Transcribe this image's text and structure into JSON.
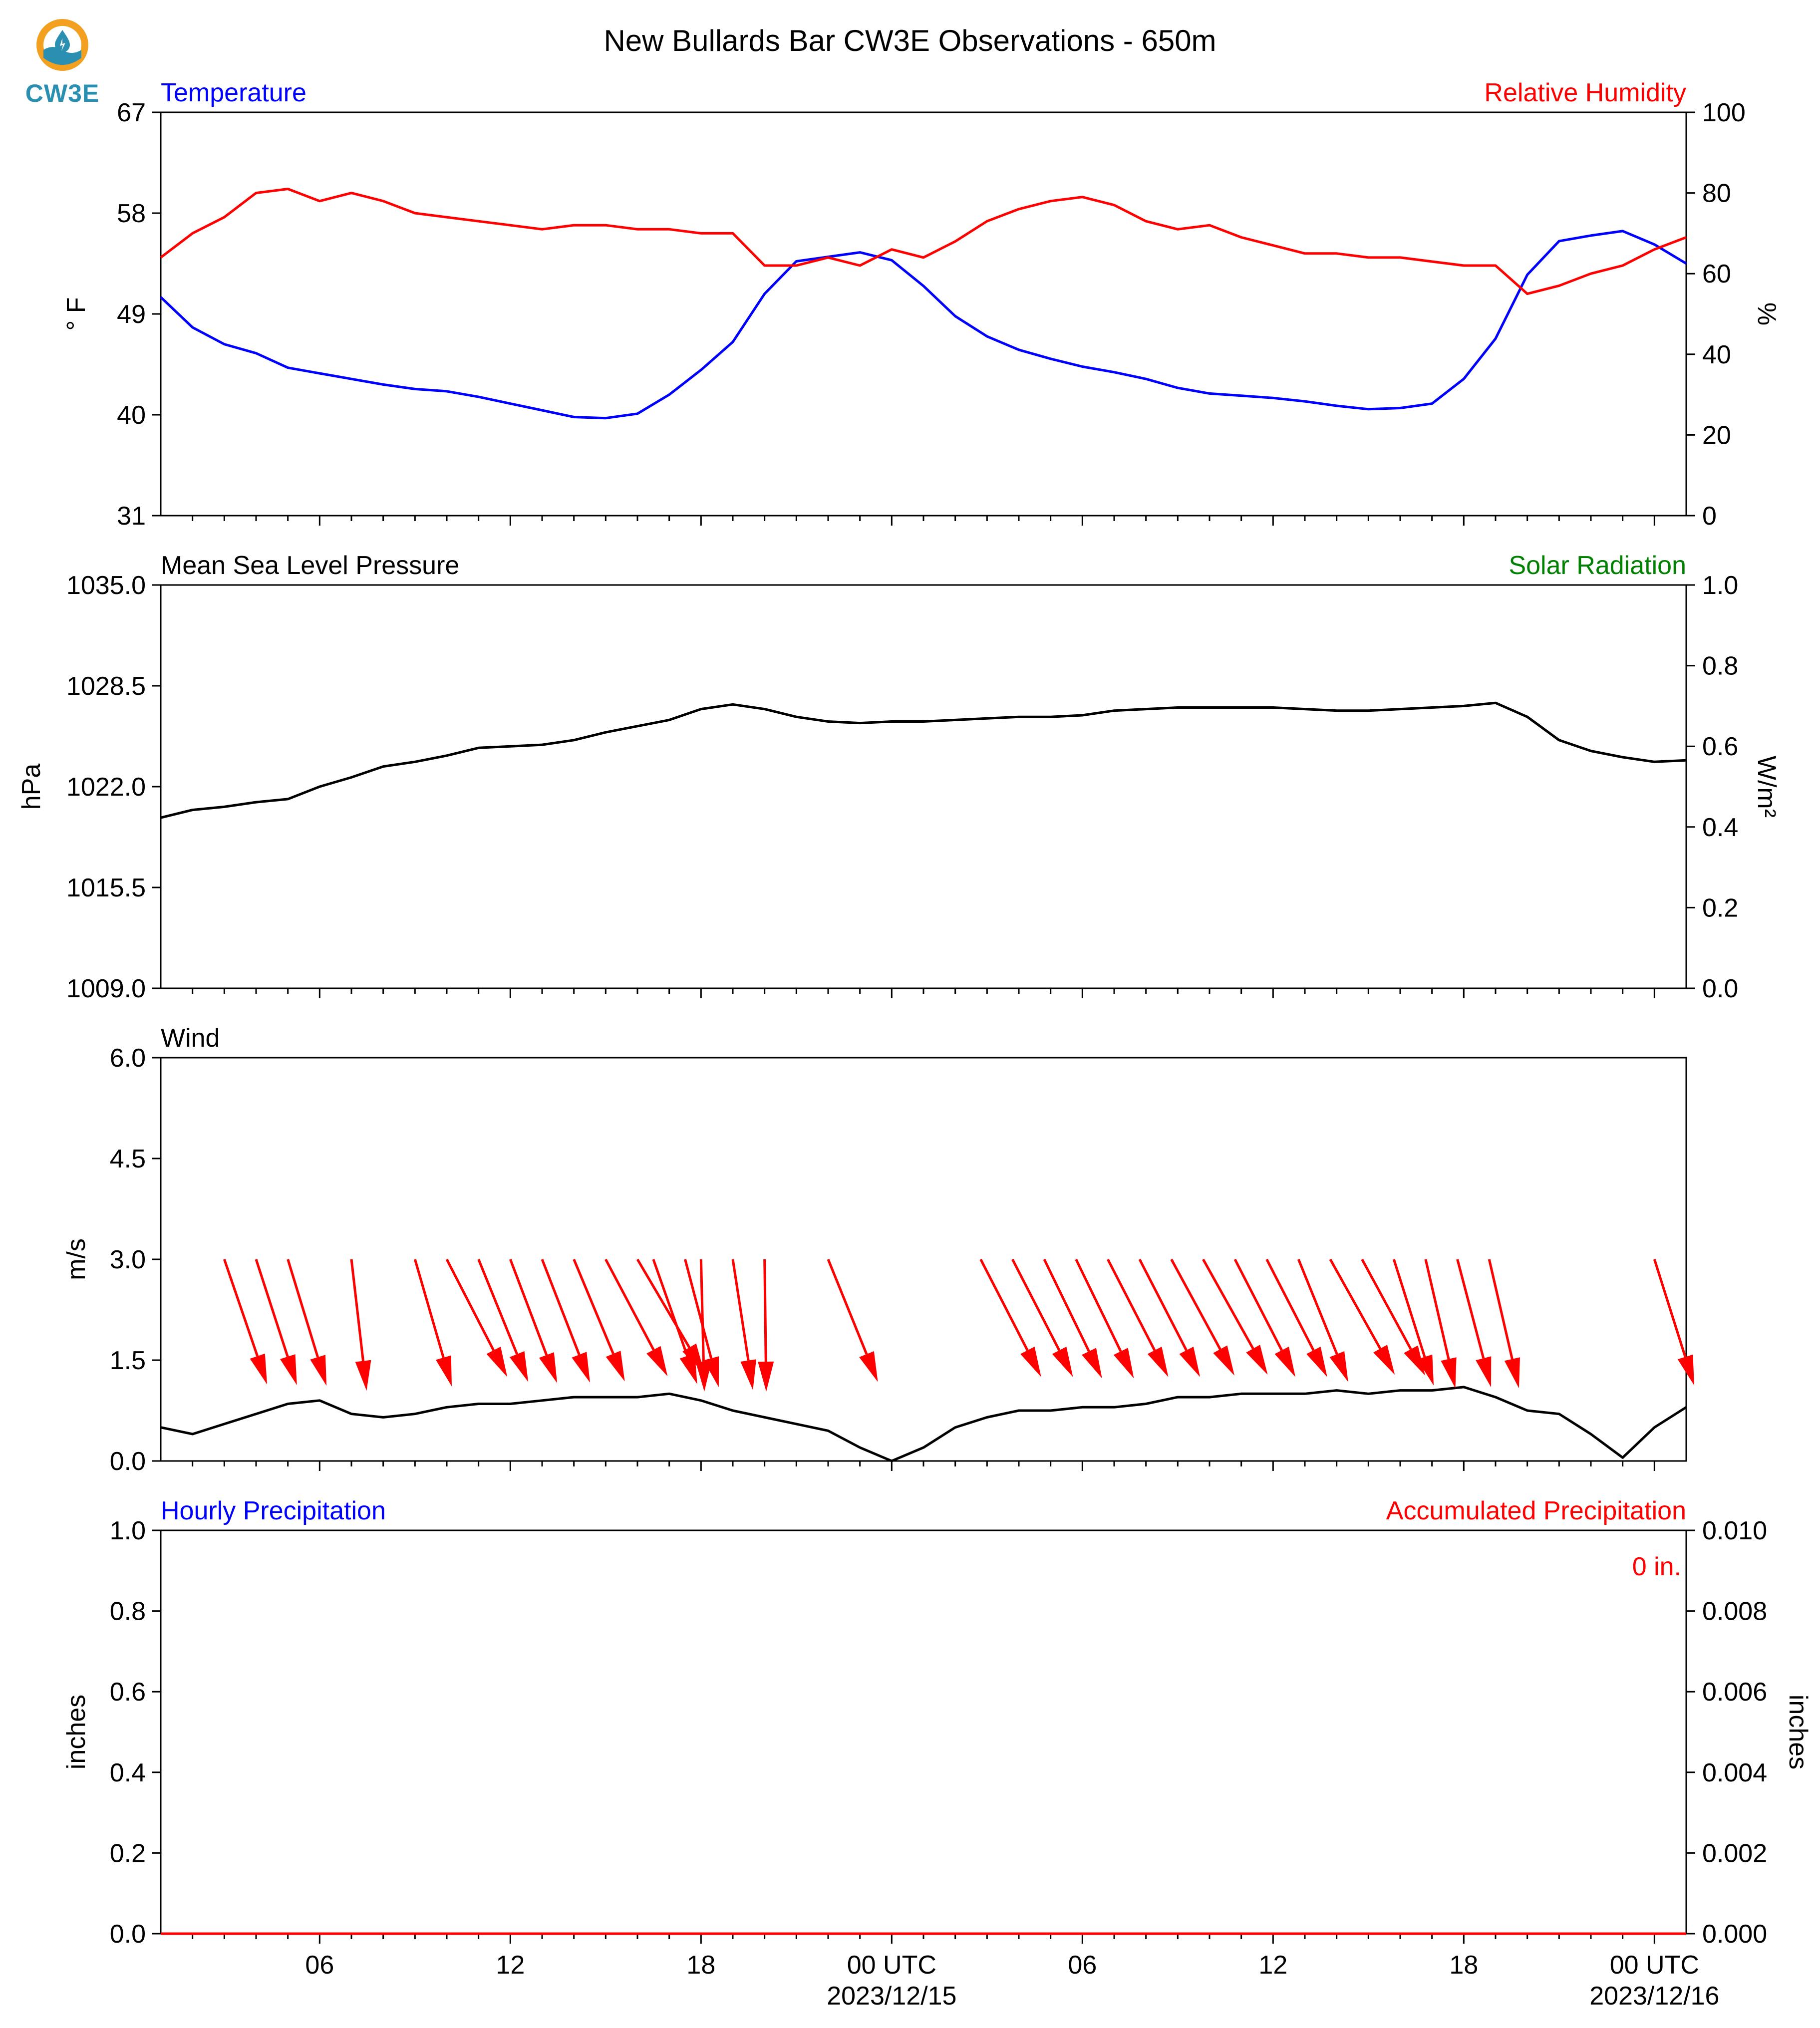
{
  "logo": {
    "text": "CW3E",
    "icon": "cw3e-logo-icon",
    "colors": {
      "orange": "#f3a021",
      "blue": "#2a8fb0"
    }
  },
  "title": "New Bullards Bar CW3E Observations - 650m",
  "colors": {
    "temperature": "#0000ff",
    "humidity": "#ff0000",
    "pressure": "#000000",
    "solar": "#008000",
    "wind": "#000000",
    "wind_arrows": "#ff0000",
    "hourly_precip": "#0000ff",
    "accum_precip": "#ff0000"
  },
  "chart_data": [
    {
      "type": "line",
      "left_label": "Temperature",
      "right_label": "Relative Humidity",
      "ylabel": "° F",
      "ylabel_right": "%",
      "ylim": [
        31,
        67
      ],
      "ylim_right": [
        0,
        100
      ],
      "yticks": [
        "31",
        "40",
        "49",
        "58",
        "67"
      ],
      "yticks_right": [
        "0",
        "20",
        "40",
        "60",
        "80",
        "100"
      ],
      "xlim_hours": [
        0,
        48
      ],
      "series": [
        {
          "name": "Temperature",
          "axis": "left",
          "x": [
            0,
            1,
            2,
            3,
            4,
            5,
            6,
            7,
            8,
            9,
            10,
            11,
            12,
            13,
            14,
            15,
            16,
            17,
            18,
            19,
            20,
            21,
            22,
            23,
            24,
            25,
            26,
            27,
            28,
            29,
            30,
            31,
            32,
            33,
            34,
            35,
            36,
            37,
            38,
            39,
            40,
            41,
            42,
            43,
            44,
            45,
            46,
            47,
            48
          ],
          "y": [
            50.5,
            47.8,
            46.3,
            45.5,
            44.2,
            43.7,
            43.2,
            42.7,
            42.3,
            42.1,
            41.6,
            41.0,
            40.4,
            39.8,
            39.7,
            40.1,
            41.8,
            44.0,
            46.5,
            50.8,
            53.7,
            54.1,
            54.5,
            53.8,
            51.5,
            48.8,
            47.0,
            45.8,
            45.0,
            44.3,
            43.8,
            43.2,
            42.4,
            41.9,
            41.7,
            41.5,
            41.2,
            40.8,
            40.5,
            40.6,
            41.0,
            43.2,
            46.8,
            52.5,
            55.5,
            56.0,
            56.4,
            55.2,
            53.5
          ]
        },
        {
          "name": "Relative Humidity",
          "axis": "right",
          "x": [
            0,
            1,
            2,
            3,
            4,
            5,
            6,
            7,
            8,
            9,
            10,
            11,
            12,
            13,
            14,
            15,
            16,
            17,
            18,
            19,
            20,
            21,
            22,
            23,
            24,
            25,
            26,
            27,
            28,
            29,
            30,
            31,
            32,
            33,
            34,
            35,
            36,
            37,
            38,
            39,
            40,
            41,
            42,
            43,
            44,
            45,
            46,
            47,
            48
          ],
          "y": [
            64,
            70,
            74,
            80,
            81,
            78,
            80,
            78,
            75,
            74,
            73,
            72,
            71,
            72,
            72,
            71,
            71,
            70,
            70,
            62,
            62,
            64,
            62,
            66,
            64,
            68,
            73,
            76,
            78,
            79,
            77,
            73,
            71,
            72,
            69,
            67,
            65,
            65,
            64,
            64,
            63,
            62,
            62,
            55,
            57,
            60,
            62,
            66,
            69
          ]
        }
      ]
    },
    {
      "type": "line",
      "left_label": "Mean Sea Level Pressure",
      "right_label": "Solar Radiation",
      "ylabel": "hPa",
      "ylabel_right": "W/m²",
      "ylim": [
        1009.0,
        1035.0
      ],
      "ylim_right": [
        0.0,
        1.0
      ],
      "yticks": [
        "1009.0",
        "1015.5",
        "1022.0",
        "1028.5",
        "1035.0"
      ],
      "yticks_right": [
        "0.0",
        "0.2",
        "0.4",
        "0.6",
        "0.8",
        "1.0"
      ],
      "xlim_hours": [
        0,
        48
      ],
      "series": [
        {
          "name": "Mean Sea Level Pressure",
          "axis": "left",
          "x": [
            0,
            1,
            2,
            3,
            4,
            5,
            6,
            7,
            8,
            9,
            10,
            11,
            12,
            13,
            14,
            15,
            16,
            17,
            18,
            19,
            20,
            21,
            22,
            23,
            24,
            25,
            26,
            27,
            28,
            29,
            30,
            31,
            32,
            33,
            34,
            35,
            36,
            37,
            38,
            39,
            40,
            41,
            42,
            43,
            44,
            45,
            46,
            47,
            48
          ],
          "y": [
            1020.0,
            1020.5,
            1020.7,
            1021.0,
            1021.2,
            1022.0,
            1022.6,
            1023.3,
            1023.6,
            1024.0,
            1024.5,
            1024.6,
            1024.7,
            1025.0,
            1025.5,
            1025.9,
            1026.3,
            1027.0,
            1027.3,
            1027.0,
            1026.5,
            1026.2,
            1026.1,
            1026.2,
            1026.2,
            1026.3,
            1026.4,
            1026.5,
            1026.5,
            1026.6,
            1026.9,
            1027.0,
            1027.1,
            1027.1,
            1027.1,
            1027.1,
            1027.0,
            1026.9,
            1026.9,
            1027.0,
            1027.1,
            1027.2,
            1027.4,
            1026.5,
            1025.0,
            1024.3,
            1023.9,
            1023.6,
            1023.7
          ]
        }
      ]
    },
    {
      "type": "line",
      "left_label": "Wind",
      "ylabel": "m/s",
      "ylim": [
        0.0,
        6.0
      ],
      "yticks": [
        "0.0",
        "1.5",
        "3.0",
        "4.5",
        "6.0"
      ],
      "xlim_hours": [
        0,
        48
      ],
      "series": [
        {
          "name": "Wind",
          "axis": "left",
          "x": [
            0,
            1,
            2,
            3,
            4,
            5,
            6,
            7,
            8,
            9,
            10,
            11,
            12,
            13,
            14,
            15,
            16,
            17,
            18,
            19,
            20,
            21,
            22,
            23,
            24,
            25,
            26,
            27,
            28,
            29,
            30,
            31,
            32,
            33,
            34,
            35,
            36,
            37,
            38,
            39,
            40,
            41,
            42,
            43,
            44,
            45,
            46,
            47,
            48
          ],
          "y": [
            0.5,
            0.4,
            0.55,
            0.7,
            0.85,
            0.9,
            0.7,
            0.65,
            0.7,
            0.8,
            0.85,
            0.85,
            0.9,
            0.95,
            0.95,
            0.95,
            1.0,
            0.9,
            0.75,
            0.65,
            0.55,
            0.45,
            0.2,
            0.0,
            0.2,
            0.5,
            0.65,
            0.75,
            0.75,
            0.8,
            0.8,
            0.85,
            0.95,
            0.95,
            1.0,
            1.0,
            1.0,
            1.05,
            1.0,
            1.05,
            1.05,
            1.1,
            0.95,
            0.75,
            0.7,
            0.4,
            0.05,
            0.5,
            0.8
          ]
        }
      ],
      "wind_barbs": {
        "note": "",
        "arrows": [
          {
            "hour": 2.0,
            "dx": 1.3,
            "dy": -3.8
          },
          {
            "hour": 3.0,
            "dx": 1.2,
            "dy": -3.7
          },
          {
            "hour": 4.0,
            "dx": 1.1,
            "dy": -3.6
          },
          {
            "hour": 6.0,
            "dx": 0.45,
            "dy": -3.9
          },
          {
            "hour": 8.0,
            "dx": 1.1,
            "dy": -3.8
          },
          {
            "hour": 9.0,
            "dx": 1.8,
            "dy": -3.5
          },
          {
            "hour": 10.0,
            "dx": 1.5,
            "dy": -3.7
          },
          {
            "hour": 11.0,
            "dx": 1.4,
            "dy": -3.7
          },
          {
            "hour": 12.0,
            "dx": 1.4,
            "dy": -3.6
          },
          {
            "hour": 13.0,
            "dx": 1.5,
            "dy": -3.6
          },
          {
            "hour": 14.0,
            "dx": 1.8,
            "dy": -3.4
          },
          {
            "hour": 15.0,
            "dx": 2.0,
            "dy": -3.4
          },
          {
            "hour": 15.5,
            "dx": 1.3,
            "dy": -3.7
          },
          {
            "hour": 16.5,
            "dx": 1.0,
            "dy": -3.8
          },
          {
            "hour": 17.0,
            "dx": 0.1,
            "dy": -4.0
          },
          {
            "hour": 18.0,
            "dx": 0.6,
            "dy": -3.9
          },
          {
            "hour": 19.0,
            "dx": 0.05,
            "dy": -4.0
          },
          {
            "hour": 21.0,
            "dx": 1.5,
            "dy": -3.7
          },
          {
            "hour": 25.8,
            "dx": 1.8,
            "dy": -3.5
          },
          {
            "hour": 26.8,
            "dx": 1.8,
            "dy": -3.5
          },
          {
            "hour": 27.8,
            "dx": 1.7,
            "dy": -3.5
          },
          {
            "hour": 28.8,
            "dx": 1.7,
            "dy": -3.5
          },
          {
            "hour": 29.8,
            "dx": 1.8,
            "dy": -3.5
          },
          {
            "hour": 30.8,
            "dx": 1.8,
            "dy": -3.5
          },
          {
            "hour": 31.8,
            "dx": 1.9,
            "dy": -3.5
          },
          {
            "hour": 32.8,
            "dx": 1.9,
            "dy": -3.4
          },
          {
            "hour": 33.8,
            "dx": 1.8,
            "dy": -3.5
          },
          {
            "hour": 34.8,
            "dx": 1.8,
            "dy": -3.5
          },
          {
            "hour": 35.8,
            "dx": 1.5,
            "dy": -3.7
          },
          {
            "hour": 36.8,
            "dx": 1.9,
            "dy": -3.4
          },
          {
            "hour": 37.8,
            "dx": 1.9,
            "dy": -3.5
          },
          {
            "hour": 38.8,
            "dx": 1.2,
            "dy": -3.8
          },
          {
            "hour": 39.8,
            "dx": 0.9,
            "dy": -3.9
          },
          {
            "hour": 40.8,
            "dx": 1.0,
            "dy": -3.8
          },
          {
            "hour": 41.8,
            "dx": 0.9,
            "dy": -3.9
          },
          {
            "hour": 47.0,
            "dx": 1.2,
            "dy": -3.8
          }
        ]
      }
    },
    {
      "type": "line",
      "left_label": "Hourly Precipitation",
      "right_label": "Accumulated Precipitation",
      "annotation": "0 in.",
      "ylabel": "inches",
      "ylabel_right": "inches",
      "ylim": [
        0.0,
        1.0
      ],
      "ylim_right": [
        0.0,
        0.01
      ],
      "yticks": [
        "0.0",
        "0.2",
        "0.4",
        "0.6",
        "0.8",
        "1.0"
      ],
      "yticks_right": [
        "0.000",
        "0.002",
        "0.004",
        "0.006",
        "0.008",
        "0.010"
      ],
      "xlim_hours": [
        0,
        48
      ],
      "series": [
        {
          "name": "Hourly Precipitation",
          "axis": "left",
          "x": [
            0,
            48
          ],
          "y": [
            0,
            0
          ]
        },
        {
          "name": "Accumulated Precipitation",
          "axis": "right",
          "x": [
            0,
            48
          ],
          "y": [
            0,
            0
          ]
        }
      ]
    }
  ],
  "x_axis": {
    "ticks": [
      {
        "hour": 5,
        "label": "06"
      },
      {
        "hour": 11,
        "label": "12"
      },
      {
        "hour": 17,
        "label": "18"
      },
      {
        "hour": 23,
        "label": "00 UTC",
        "sublabel": "2023/12/15"
      },
      {
        "hour": 29,
        "label": "06"
      },
      {
        "hour": 35,
        "label": "12"
      },
      {
        "hour": 41,
        "label": "18"
      },
      {
        "hour": 47,
        "label": "00 UTC",
        "sublabel": "2023/12/16"
      }
    ]
  }
}
